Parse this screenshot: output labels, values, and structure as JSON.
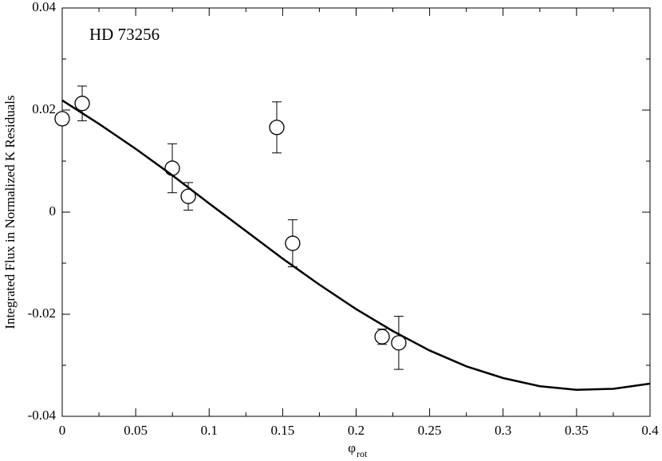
{
  "chart_data": {
    "type": "scatter",
    "annotation": "HD 73256",
    "y_label": "Integrated Flux in Normalized K Residuals",
    "x_label": "φ",
    "x_label_sub": "rot",
    "xlim": [
      0,
      0.4
    ],
    "ylim": [
      -0.04,
      0.04
    ],
    "xticks": [
      0,
      0.05,
      0.1,
      0.15,
      0.2,
      0.25,
      0.3,
      0.35,
      0.4
    ],
    "yticks": [
      -0.04,
      -0.02,
      0,
      0.02,
      0.04
    ],
    "color": "#000000",
    "series": [
      {
        "type": "scatter",
        "x": [
          0.0,
          0.0136,
          0.0749,
          0.0858,
          0.146,
          0.1568,
          0.2177,
          0.229
        ],
        "values": [
          0.0183,
          0.0213,
          0.0086,
          0.0031,
          0.0166,
          -0.0061,
          -0.0244,
          -0.0256
        ],
        "errors": [
          null,
          0.0034,
          0.0048,
          0.0027,
          0.005,
          0.0046,
          0.0015,
          0.0052
        ]
      },
      {
        "type": "line",
        "x": [
          0,
          0.025,
          0.05,
          0.075,
          0.1,
          0.125,
          0.15,
          0.175,
          0.2,
          0.225,
          0.25,
          0.275,
          0.3,
          0.325,
          0.35,
          0.375,
          0.4
        ],
        "values": [
          0.0219,
          0.0173,
          0.0124,
          0.0072,
          0.0017,
          -0.0037,
          -0.0091,
          -0.0142,
          -0.019,
          -0.0233,
          -0.0271,
          -0.0302,
          -0.0325,
          -0.0341,
          -0.0348,
          -0.0346,
          -0.0336
        ]
      }
    ]
  }
}
